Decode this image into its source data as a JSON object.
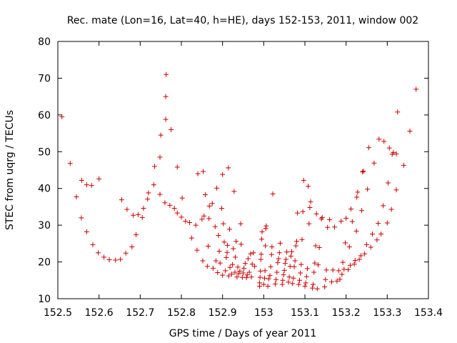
{
  "chart_data": {
    "type": "scatter",
    "title": "Rec. mate (Lon=16, Lat=40, h=HE), days 152-153, 2011, window 002",
    "xlabel": "GPS time / Days of year 2011",
    "ylabel": "STEC from uqrg / TECUs",
    "xlim": [
      152.5,
      153.4
    ],
    "ylim": [
      10,
      80
    ],
    "x_ticks": [
      152.5,
      152.6,
      152.7,
      152.8,
      152.9,
      153.0,
      153.1,
      153.2,
      153.3,
      153.4
    ],
    "x_tick_labels": [
      "152.5",
      "152.6",
      "152.7",
      "152.8",
      "152.9",
      "153",
      "153.1",
      "153.2",
      "153.3",
      "153.4"
    ],
    "y_ticks": [
      10,
      20,
      30,
      40,
      50,
      60,
      70,
      80
    ],
    "y_tick_labels": [
      "10",
      "20",
      "30",
      "40",
      "50",
      "60",
      "70",
      "80"
    ],
    "grid": false,
    "legend": "none",
    "marker": "plus",
    "color": "#cc0000",
    "series": [
      {
        "points": [
          [
            152.51,
            59.5
          ],
          [
            152.53,
            46.8
          ],
          [
            152.545,
            37.7
          ],
          [
            152.557,
            32.0
          ],
          [
            152.558,
            42.2
          ],
          [
            152.57,
            28.2
          ],
          [
            152.57,
            41.0
          ],
          [
            152.582,
            40.8
          ],
          [
            152.585,
            24.7
          ],
          [
            152.598,
            22.5
          ],
          [
            152.6,
            42.6
          ],
          [
            152.612,
            21.3
          ],
          [
            152.625,
            20.6
          ],
          [
            152.64,
            20.5
          ],
          [
            152.652,
            20.7
          ],
          [
            152.655,
            36.9
          ],
          [
            152.665,
            22.4
          ],
          [
            152.668,
            34.3
          ],
          [
            152.68,
            24.1
          ],
          [
            152.683,
            32.7
          ],
          [
            152.69,
            27.4
          ],
          [
            152.695,
            32.9
          ],
          [
            152.705,
            32.1
          ],
          [
            152.708,
            34.6
          ],
          [
            152.718,
            37.1
          ],
          [
            152.72,
            38.8
          ],
          [
            152.733,
            41.0
          ],
          [
            152.735,
            46.0
          ],
          [
            152.748,
            38.4
          ],
          [
            152.748,
            48.5
          ],
          [
            152.75,
            54.5
          ],
          [
            152.76,
            36.1
          ],
          [
            152.762,
            58.8
          ],
          [
            152.762,
            65.0
          ],
          [
            152.763,
            71.0
          ],
          [
            152.772,
            35.4
          ],
          [
            152.775,
            56.0
          ],
          [
            152.783,
            34.6
          ],
          [
            152.79,
            33.3
          ],
          [
            152.79,
            45.8
          ],
          [
            152.8,
            32.2
          ],
          [
            152.802,
            37.4
          ],
          [
            152.81,
            31.1
          ],
          [
            152.82,
            30.7
          ],
          [
            152.825,
            26.5
          ],
          [
            152.835,
            30.0
          ],
          [
            152.838,
            23.2
          ],
          [
            152.84,
            44.0
          ],
          [
            152.85,
            31.6
          ],
          [
            152.852,
            20.3
          ],
          [
            152.853,
            44.6
          ],
          [
            152.855,
            32.5
          ],
          [
            152.858,
            38.3
          ],
          [
            152.863,
            18.8
          ],
          [
            152.865,
            24.3
          ],
          [
            152.867,
            31.8
          ],
          [
            152.868,
            35.2
          ],
          [
            152.875,
            35.9
          ],
          [
            152.877,
            18.3
          ],
          [
            152.882,
            29.6
          ],
          [
            152.884,
            20.3
          ],
          [
            152.886,
            40.1
          ],
          [
            152.888,
            17.1
          ],
          [
            152.89,
            27.2
          ],
          [
            152.892,
            22.9
          ],
          [
            152.894,
            19.7
          ],
          [
            152.898,
            34.6
          ],
          [
            152.9,
            16.4
          ],
          [
            152.9,
            43.8
          ],
          [
            152.902,
            30.4
          ],
          [
            152.904,
            25.4
          ],
          [
            152.907,
            17.6
          ],
          [
            152.909,
            21.2
          ],
          [
            152.911,
            22.6
          ],
          [
            152.912,
            24.5
          ],
          [
            152.914,
            45.6
          ],
          [
            152.915,
            16.2
          ],
          [
            152.917,
            28.9
          ],
          [
            152.918,
            18.5
          ],
          [
            152.922,
            16.7
          ],
          [
            152.924,
            19.3
          ],
          [
            152.926,
            23.6
          ],
          [
            152.928,
            39.2
          ],
          [
            152.93,
            17.2
          ],
          [
            152.931,
            21.3
          ],
          [
            152.933,
            25.6
          ],
          [
            152.935,
            15.9
          ],
          [
            152.937,
            18.6
          ],
          [
            152.939,
            16.8
          ],
          [
            152.942,
            17.5
          ],
          [
            152.944,
            30.4
          ],
          [
            152.945,
            24.8
          ],
          [
            152.948,
            15.8
          ],
          [
            152.95,
            17.0
          ],
          [
            152.952,
            18.3
          ],
          [
            152.955,
            19.6
          ],
          [
            152.958,
            15.7
          ],
          [
            152.96,
            16.5
          ],
          [
            152.962,
            20.9
          ],
          [
            152.965,
            17.2
          ],
          [
            152.968,
            22.2
          ],
          [
            152.97,
            15.9
          ],
          [
            152.972,
            19.4
          ],
          [
            152.975,
            22.5
          ],
          [
            152.978,
            18.8
          ],
          [
            152.99,
            13.4
          ],
          [
            152.99,
            14.3
          ],
          [
            152.991,
            15.8
          ],
          [
            152.992,
            17.5
          ],
          [
            152.993,
            20.7
          ],
          [
            152.994,
            22.1
          ],
          [
            152.995,
            26.2
          ],
          [
            152.996,
            28.2
          ],
          [
            153.0,
            13.9
          ],
          [
            153.002,
            15.6
          ],
          [
            153.003,
            17.6
          ],
          [
            153.004,
            24.4
          ],
          [
            153.005,
            29.1
          ],
          [
            153.006,
            29.8
          ],
          [
            153.01,
            13.4
          ],
          [
            153.012,
            15.4
          ],
          [
            153.015,
            16.3
          ],
          [
            153.017,
            18.7
          ],
          [
            153.019,
            22.0
          ],
          [
            153.02,
            24.1
          ],
          [
            153.022,
            38.5
          ],
          [
            153.028,
            14.0
          ],
          [
            153.03,
            15.2
          ],
          [
            153.032,
            17.2
          ],
          [
            153.034,
            19.8
          ],
          [
            153.036,
            20.9
          ],
          [
            153.038,
            22.5
          ],
          [
            153.04,
            25.1
          ],
          [
            153.045,
            13.9
          ],
          [
            153.046,
            15.0
          ],
          [
            153.048,
            16.5
          ],
          [
            153.05,
            17.7
          ],
          [
            153.052,
            19.6
          ],
          [
            153.054,
            20.7
          ],
          [
            153.056,
            22.7
          ],
          [
            153.06,
            14.5
          ],
          [
            153.062,
            15.9
          ],
          [
            153.064,
            18.8
          ],
          [
            153.066,
            21.6
          ],
          [
            153.068,
            22.8
          ],
          [
            153.07,
            14.1
          ],
          [
            153.072,
            15.6
          ],
          [
            153.074,
            18.7
          ],
          [
            153.076,
            20.3
          ],
          [
            153.078,
            24.4
          ],
          [
            153.08,
            25.6
          ],
          [
            153.082,
            33.3
          ],
          [
            153.085,
            13.9
          ],
          [
            153.087,
            15.0
          ],
          [
            153.089,
            17.0
          ],
          [
            153.091,
            19.3
          ],
          [
            153.093,
            26.1
          ],
          [
            153.095,
            33.7
          ],
          [
            153.097,
            42.2
          ],
          [
            153.1,
            13.4
          ],
          [
            153.102,
            14.3
          ],
          [
            153.104,
            16.0
          ],
          [
            153.106,
            18.2
          ],
          [
            153.108,
            40.6
          ],
          [
            153.11,
            30.4
          ],
          [
            153.112,
            34.8
          ],
          [
            153.114,
            36.4
          ],
          [
            153.118,
            12.9
          ],
          [
            153.12,
            13.9
          ],
          [
            153.122,
            17.2
          ],
          [
            153.124,
            19.7
          ],
          [
            153.126,
            24.4
          ],
          [
            153.128,
            33.1
          ],
          [
            153.13,
            12.7
          ],
          [
            153.132,
            19.2
          ],
          [
            153.135,
            23.9
          ],
          [
            153.14,
            31.7
          ],
          [
            153.142,
            32.1
          ],
          [
            153.148,
            13.2
          ],
          [
            153.15,
            15.2
          ],
          [
            153.152,
            17.8
          ],
          [
            153.155,
            29.4
          ],
          [
            153.16,
            31.5
          ],
          [
            153.165,
            14.6
          ],
          [
            153.168,
            17.8
          ],
          [
            153.172,
            29.5
          ],
          [
            153.178,
            14.8
          ],
          [
            153.182,
            17.6
          ],
          [
            153.185,
            15.3
          ],
          [
            153.188,
            31.1
          ],
          [
            153.19,
            16.6
          ],
          [
            153.192,
            19.9
          ],
          [
            153.195,
            18.0
          ],
          [
            153.198,
            25.2
          ],
          [
            153.2,
            31.9
          ],
          [
            153.205,
            17.9
          ],
          [
            153.208,
            24.1
          ],
          [
            153.21,
            19.1
          ],
          [
            153.212,
            34.4
          ],
          [
            153.215,
            31.0
          ],
          [
            153.22,
            19.4
          ],
          [
            153.222,
            20.4
          ],
          [
            153.225,
            28.4
          ],
          [
            153.226,
            37.6
          ],
          [
            153.228,
            39.0
          ],
          [
            153.232,
            20.7
          ],
          [
            153.236,
            21.7
          ],
          [
            153.238,
            34.0
          ],
          [
            153.24,
            44.5
          ],
          [
            153.242,
            44.7
          ],
          [
            153.245,
            22.2
          ],
          [
            153.25,
            24.7
          ],
          [
            153.252,
            39.8
          ],
          [
            153.255,
            51.1
          ],
          [
            153.26,
            24.0
          ],
          [
            153.264,
            27.6
          ],
          [
            153.268,
            46.9
          ],
          [
            153.275,
            26.0
          ],
          [
            153.278,
            30.5
          ],
          [
            153.28,
            53.4
          ],
          [
            153.285,
            27.6
          ],
          [
            153.29,
            35.3
          ],
          [
            153.292,
            52.8
          ],
          [
            153.3,
            30.6
          ],
          [
            153.302,
            41.5
          ],
          [
            153.305,
            51.0
          ],
          [
            153.31,
            34.3
          ],
          [
            153.312,
            49.3
          ],
          [
            153.315,
            49.8
          ],
          [
            153.322,
            39.6
          ],
          [
            153.322,
            49.4
          ],
          [
            153.325,
            60.8
          ],
          [
            153.34,
            46.3
          ],
          [
            153.355,
            55.6
          ],
          [
            153.37,
            67.0
          ]
        ]
      }
    ]
  }
}
